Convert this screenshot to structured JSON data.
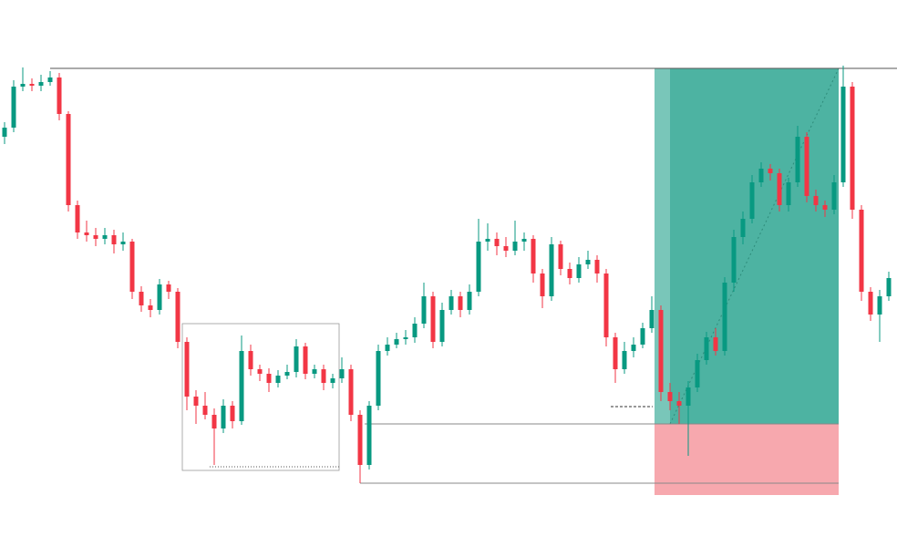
{
  "chart_data": {
    "type": "candlestick",
    "ylim": [
      0,
      600
    ],
    "up_color": "#089981",
    "down_color": "#f23645",
    "open": [
      450,
      460,
      505,
      508,
      506,
      510,
      515,
      475,
      375,
      345,
      342,
      338,
      342,
      332,
      335,
      280,
      265,
      260,
      288,
      280,
      225,
      165,
      155,
      145,
      130,
      155,
      138,
      215,
      195,
      190,
      180,
      188,
      192,
      220,
      190,
      195,
      180,
      185,
      195,
      145,
      90,
      155,
      215,
      222,
      228,
      230,
      245,
      275,
      225,
      260,
      275,
      260,
      280,
      335,
      338,
      330,
      325,
      335,
      338,
      300,
      275,
      332,
      305,
      295,
      310,
      315,
      300,
      230,
      195,
      215,
      222,
      240,
      260,
      170,
      160,
      155,
      175,
      205,
      230,
      215,
      290,
      340,
      360,
      400,
      415,
      410,
      375,
      400,
      450,
      385,
      375,
      370,
      400,
      505,
      370,
      280,
      255,
      275
    ],
    "high": [
      466,
      512,
      526,
      514,
      518,
      522,
      520,
      478,
      380,
      358,
      350,
      350,
      348,
      345,
      338,
      286,
      272,
      294,
      292,
      284,
      230,
      172,
      170,
      152,
      162,
      160,
      232,
      222,
      200,
      196,
      194,
      200,
      228,
      224,
      200,
      200,
      190,
      208,
      200,
      150,
      160,
      222,
      230,
      235,
      238,
      252,
      290,
      280,
      268,
      282,
      280,
      288,
      360,
      355,
      345,
      340,
      358,
      345,
      342,
      305,
      340,
      336,
      312,
      318,
      325,
      320,
      305,
      235,
      225,
      230,
      246,
      275,
      265,
      180,
      170,
      182,
      212,
      236,
      240,
      296,
      348,
      368,
      408,
      422,
      420,
      415,
      405,
      462,
      455,
      392,
      380,
      408,
      528,
      510,
      375,
      285,
      282,
      302
    ],
    "low": [
      442,
      455,
      500,
      500,
      500,
      506,
      468,
      368,
      338,
      335,
      330,
      332,
      322,
      325,
      272,
      258,
      252,
      255,
      272,
      218,
      150,
      135,
      140,
      90,
      125,
      130,
      134,
      188,
      182,
      170,
      175,
      184,
      186,
      184,
      185,
      172,
      174,
      180,
      138,
      70,
      85,
      150,
      210,
      218,
      222,
      224,
      240,
      218,
      220,
      255,
      252,
      255,
      275,
      325,
      320,
      318,
      320,
      325,
      290,
      262,
      270,
      298,
      288,
      290,
      305,
      290,
      220,
      180,
      190,
      208,
      218,
      235,
      160,
      150,
      135,
      100,
      170,
      200,
      210,
      210,
      280,
      332,
      355,
      395,
      402,
      368,
      368,
      395,
      378,
      368,
      362,
      365,
      395,
      360,
      270,
      248,
      225,
      270
    ],
    "close": [
      460,
      505,
      508,
      506,
      510,
      515,
      475,
      375,
      345,
      342,
      338,
      342,
      332,
      335,
      280,
      265,
      260,
      288,
      280,
      225,
      165,
      155,
      145,
      130,
      155,
      138,
      215,
      195,
      190,
      180,
      188,
      192,
      220,
      190,
      195,
      180,
      185,
      195,
      145,
      90,
      155,
      215,
      222,
      228,
      230,
      245,
      275,
      225,
      260,
      275,
      260,
      280,
      335,
      338,
      330,
      325,
      335,
      338,
      300,
      275,
      332,
      305,
      295,
      310,
      315,
      300,
      230,
      195,
      215,
      222,
      240,
      260,
      170,
      160,
      155,
      175,
      205,
      230,
      215,
      290,
      340,
      360,
      400,
      415,
      410,
      375,
      400,
      450,
      385,
      375,
      370,
      400,
      505,
      370,
      280,
      255,
      275,
      295
    ],
    "levels": [
      {
        "value": 525,
        "style": "solid",
        "color": "#555555"
      },
      {
        "value": 88,
        "style": "dotted",
        "color": "#555555"
      },
      {
        "value": 135,
        "style": "solid",
        "color": "#888888"
      },
      {
        "value": 70,
        "style": "solid",
        "color": "#888888"
      },
      {
        "value": 154,
        "style": "dashed",
        "color": "#333333"
      }
    ],
    "zones": [
      {
        "top": 245,
        "bottom": 84,
        "fill": "none",
        "stroke": "#999999"
      },
      {
        "top": 525,
        "bottom": 135,
        "fill": "#4db3a2",
        "stroke": "none"
      },
      {
        "top": 135,
        "bottom": 57,
        "fill": "#f7a8ae",
        "stroke": "none"
      }
    ]
  }
}
